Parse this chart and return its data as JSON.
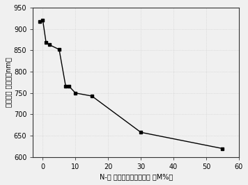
{
  "x": [
    -1,
    0,
    1,
    2,
    5,
    7,
    8,
    10,
    15,
    30,
    55
  ],
  "y": [
    918,
    920,
    868,
    863,
    852,
    766,
    766,
    750,
    743,
    658,
    620
  ],
  "xlabel": "N-甲 基咪唑摩尔百分含量 （M%）",
  "ylabel": "最大吸收 峰绿长（nm）",
  "xlim": [
    -3,
    60
  ],
  "ylim": [
    600,
    950
  ],
  "xticks": [
    0,
    10,
    20,
    30,
    40,
    50,
    60
  ],
  "yticks": [
    600,
    650,
    700,
    750,
    800,
    850,
    900,
    950
  ],
  "marker": "s",
  "markersize": 3.5,
  "linecolor": "#000000",
  "fig_bg_color": "#f0f0f0",
  "axes_bg": "#f0f0f0",
  "grid_color": "#cccccc",
  "tick_labelsize": 7,
  "xlabel_fontsize": 7,
  "ylabel_fontsize": 7
}
